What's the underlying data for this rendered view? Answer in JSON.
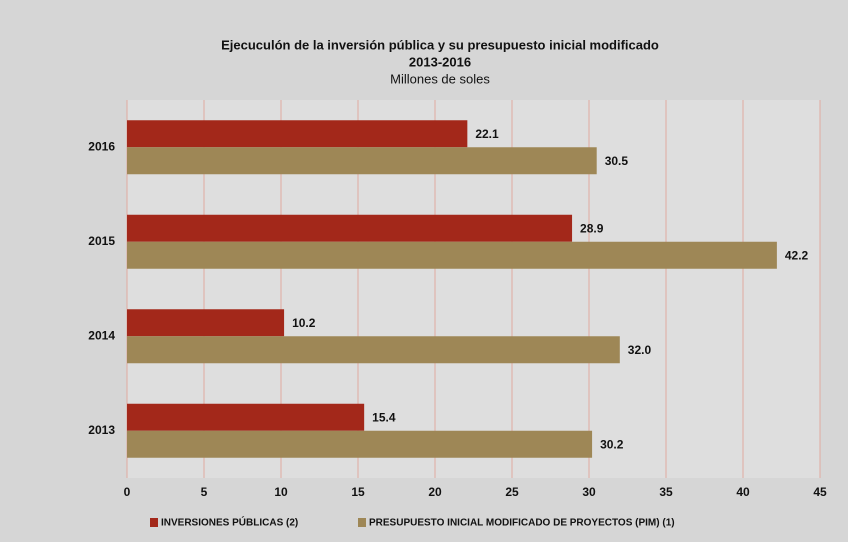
{
  "chart_data": {
    "type": "barh",
    "title": "Ejecuculón de la inversión pública y  su presupuesto inicial modificado",
    "period": "2013-2016",
    "subtitle": "Millones  de soles",
    "categories": [
      "2016",
      "2015",
      "2014",
      "2013"
    ],
    "series": [
      {
        "name": "INVERSIONES PÚBLICAS (2)",
        "color": "#a3281a",
        "values": [
          22.1,
          28.9,
          10.2,
          15.4
        ],
        "value_labels": [
          "22.1",
          "28.9",
          "10.2",
          "15.4"
        ]
      },
      {
        "name": "PRESUPUESTO INICIAL MODIFICADO DE PROYECTOS (PIM) (1)",
        "color": "#9e8756",
        "values": [
          30.5,
          42.2,
          32.0,
          30.2
        ],
        "value_labels": [
          "30.5",
          "42.2",
          "32.0",
          "30.2"
        ]
      }
    ],
    "xlim": [
      0,
      45
    ],
    "xticks": [
      0,
      5,
      10,
      15,
      20,
      25,
      30,
      35,
      40,
      45
    ],
    "grid": true
  }
}
